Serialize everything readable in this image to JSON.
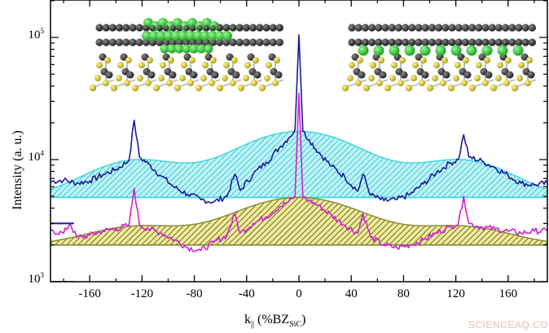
{
  "chart_data": {
    "type": "line",
    "title": "",
    "xlabel": "k|| (%BZ_SiC)",
    "xlabel_main": "k",
    "xlabel_sub1": "||",
    "xlabel_paren": " (%BZ",
    "xlabel_sub2": "SiC",
    "xlabel_close": ")",
    "ylabel": "Intensity (a. u.)",
    "yscale": "log",
    "xlim": [
      -190,
      190
    ],
    "ylim": [
      1000,
      160000
    ],
    "grid": false,
    "legend": "none",
    "x_ticks": [
      -160,
      -120,
      -80,
      -40,
      0,
      40,
      80,
      120,
      160
    ],
    "x_tick_labels": [
      "-160",
      "-120",
      "-80",
      "-40",
      "0",
      "40",
      "80",
      "120",
      "160"
    ],
    "y_ticks": [
      1000,
      10000,
      100000
    ],
    "y_tick_labels": [
      {
        "base": "10",
        "exp": "3"
      },
      {
        "base": "10",
        "exp": "4"
      },
      {
        "base": "10",
        "exp": "5"
      }
    ],
    "series": [
      {
        "name": "upper-spectrum (blue, measured)",
        "color": "#1a1aa0",
        "kind": "line",
        "x": [
          -190,
          -180,
          -170,
          -160,
          -150,
          -140,
          -130,
          -126,
          -122,
          -115,
          -105,
          -95,
          -85,
          -75,
          -65,
          -55,
          -49,
          -45,
          -35,
          -25,
          -15,
          -8,
          -3,
          0,
          3,
          8,
          15,
          25,
          35,
          45,
          49,
          55,
          65,
          75,
          85,
          95,
          105,
          115,
          122,
          126,
          130,
          140,
          150,
          160,
          170,
          180,
          190
        ],
        "y": [
          6600,
          6800,
          6400,
          6700,
          7500,
          8300,
          9800,
          21000,
          10500,
          9200,
          7300,
          5900,
          5200,
          4700,
          4500,
          5000,
          7600,
          5600,
          7600,
          9500,
          12500,
          15000,
          17500,
          105000,
          17000,
          14500,
          11500,
          8800,
          7200,
          5500,
          7600,
          5100,
          4600,
          4700,
          5200,
          6300,
          7800,
          9300,
          10000,
          16000,
          10500,
          9700,
          8600,
          7400,
          6400,
          6200,
          6400
        ]
      },
      {
        "name": "upper-fit (cyan, hatched)",
        "color": "#40d8e0",
        "kind": "filled-gaussian",
        "baseline": 4900,
        "peaks": [
          {
            "center": -126,
            "amplitude": 9700
          },
          {
            "center": 0,
            "amplitude": 17000
          },
          {
            "center": 126,
            "amplitude": 9700
          }
        ]
      },
      {
        "name": "lower-spectrum (magenta, measured)",
        "color": "#d020d0",
        "kind": "line",
        "x": [
          -190,
          -180,
          -175,
          -170,
          -160,
          -150,
          -140,
          -130,
          -126,
          -122,
          -115,
          -105,
          -95,
          -85,
          -75,
          -65,
          -55,
          -49,
          -45,
          -35,
          -25,
          -15,
          -8,
          -3,
          0,
          3,
          8,
          15,
          25,
          35,
          45,
          49,
          55,
          65,
          75,
          85,
          95,
          105,
          115,
          122,
          126,
          130,
          140,
          150,
          160,
          170,
          180,
          190
        ],
        "y": [
          2600,
          2500,
          3000,
          2300,
          2400,
          2600,
          2700,
          2900,
          5800,
          2900,
          2700,
          2500,
          2200,
          1900,
          1800,
          2100,
          2400,
          3600,
          2500,
          3000,
          3400,
          4100,
          4500,
          5000,
          35000,
          4900,
          4600,
          4200,
          3500,
          2900,
          2500,
          3600,
          2300,
          2000,
          1900,
          2000,
          2200,
          2500,
          2800,
          3000,
          5000,
          3000,
          2800,
          2700,
          2600,
          2500,
          2600,
          2600
        ]
      },
      {
        "name": "lower-fit (olive, hatched)",
        "color": "#8a8a3a",
        "kind": "filled-gaussian",
        "baseline": 2000,
        "peaks": [
          {
            "center": -126,
            "amplitude": 2800
          },
          {
            "center": 0,
            "amplitude": 4900
          },
          {
            "center": 126,
            "amplitude": 2800
          }
        ]
      }
    ],
    "annotations": [
      {
        "type": "inset-image",
        "description": "atomic model: graphene bilayer with green intercalant between layers over SiC substrate",
        "position": "top-left"
      },
      {
        "type": "inset-image",
        "description": "atomic model: graphene bilayer with green intercalant under buffer layer over SiC substrate",
        "position": "top-right"
      },
      {
        "type": "marker-line",
        "color": "#1a1aa0",
        "y": 3000,
        "x_range": [
          -190,
          -172
        ]
      },
      {
        "type": "marker-line",
        "color": "#d020d0",
        "y": 1000,
        "x_range": [
          -190,
          -172
        ]
      }
    ]
  },
  "watermark": "SCIENCEAQ.COM",
  "colors": {
    "axis": "#000000",
    "blue_line": "#1a1aa0",
    "cyan_fill": "#40d8e0",
    "magenta_line": "#d020d0",
    "olive_fill": "#8a8a3a",
    "olive_hatch_bg": "#f0ec9a",
    "carbon": "#3a3a3a",
    "intercalant": "#2ec82e",
    "silicon": "#d8c830"
  }
}
